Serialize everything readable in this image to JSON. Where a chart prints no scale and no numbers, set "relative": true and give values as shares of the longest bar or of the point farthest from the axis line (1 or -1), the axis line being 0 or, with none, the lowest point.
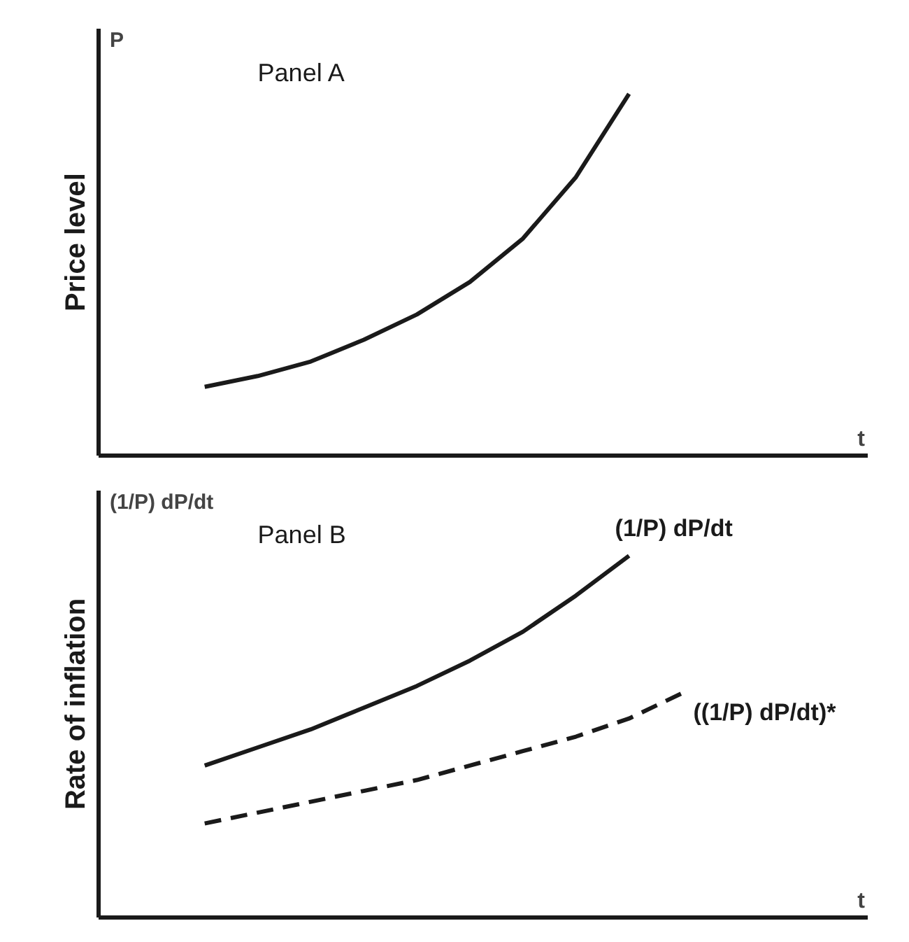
{
  "chart_data": [
    {
      "type": "line",
      "title": "Panel A",
      "ylabel": "Price level",
      "annotations": [
        "P",
        "t"
      ],
      "relative": true,
      "categories": [
        null,
        null,
        null,
        null,
        null,
        null,
        null,
        null,
        null,
        null,
        null,
        null,
        null,
        null,
        null
      ],
      "series": [
        {
          "color": "#1a1a1a",
          "line_style": "solid",
          "values": [
            null,
            null,
            0.19,
            0.22,
            0.26,
            0.32,
            0.39,
            0.48,
            0.6,
            0.77,
            1.0,
            null,
            null,
            null,
            null
          ]
        }
      ]
    },
    {
      "type": "line",
      "title": "Panel B",
      "ylabel": "Rate of inflation",
      "annotations": [
        "(1/P) dP/dt",
        "t"
      ],
      "relative": true,
      "categories": [
        null,
        null,
        null,
        null,
        null,
        null,
        null,
        null,
        null,
        null,
        null,
        null,
        null,
        null,
        null
      ],
      "series": [
        {
          "name": "(1/P) dP/dt",
          "color": "#1a1a1a",
          "line_style": "solid",
          "values": [
            null,
            null,
            0.42,
            0.47,
            0.52,
            0.58,
            0.64,
            0.71,
            0.79,
            0.89,
            1.0,
            null,
            null,
            null,
            null
          ]
        },
        {
          "name": "((1/P) dP/dt)*",
          "color": "#1a1a1a",
          "line_style": "dashed",
          "values": [
            null,
            null,
            0.26,
            0.29,
            0.32,
            0.35,
            0.38,
            0.42,
            0.46,
            0.5,
            0.55,
            0.62,
            null,
            null,
            null
          ]
        }
      ]
    }
  ]
}
